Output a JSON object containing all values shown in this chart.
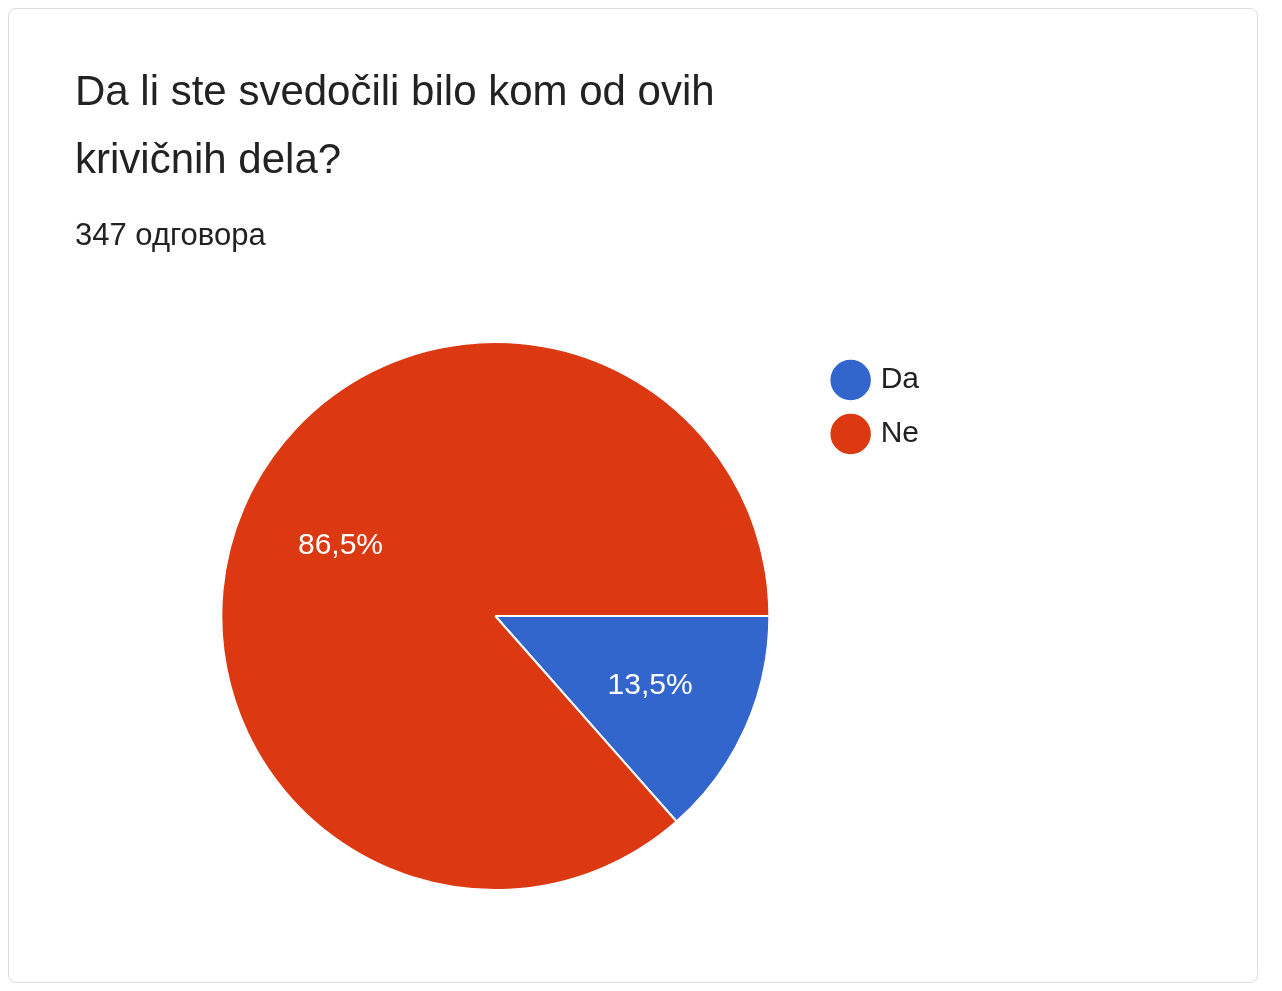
{
  "chart_data": {
    "type": "pie",
    "title": "Da li ste svedočili bilo kom od ovih krivičnih dela?",
    "subtitle": "347 одговора",
    "categories": [
      "Da",
      "Ne"
    ],
    "values": [
      13.5,
      86.5
    ],
    "colors": [
      "#3366cc",
      "#dc3912"
    ],
    "value_labels": [
      "13,5%",
      "86,5%"
    ],
    "legend": "top right"
  }
}
